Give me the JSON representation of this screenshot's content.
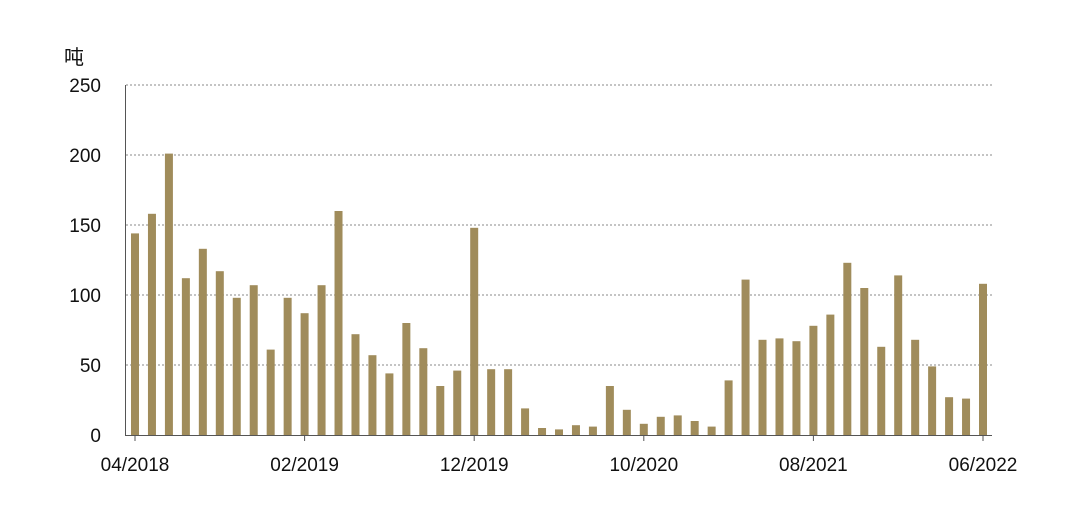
{
  "chart_data": {
    "type": "bar",
    "title": "",
    "xlabel": "",
    "ylabel": "吨",
    "ylim": [
      0,
      250
    ],
    "y_ticks": [
      0,
      50,
      100,
      150,
      200,
      250
    ],
    "x_tick_labels": [
      "04/2018",
      "02/2019",
      "12/2019",
      "10/2020",
      "08/2021",
      "06/2022"
    ],
    "grid": "horizontal-dotted",
    "bar_color": "#A08C5B",
    "categories": [
      "04/2018",
      "05/2018",
      "06/2018",
      "07/2018",
      "08/2018",
      "09/2018",
      "10/2018",
      "11/2018",
      "12/2018",
      "01/2019",
      "02/2019",
      "03/2019",
      "04/2019",
      "05/2019",
      "06/2019",
      "07/2019",
      "08/2019",
      "09/2019",
      "10/2019",
      "11/2019",
      "12/2019",
      "01/2020",
      "02/2020",
      "03/2020",
      "04/2020",
      "05/2020",
      "06/2020",
      "07/2020",
      "08/2020",
      "09/2020",
      "10/2020",
      "11/2020",
      "12/2020",
      "01/2021",
      "02/2021",
      "03/2021",
      "04/2021",
      "05/2021",
      "06/2021",
      "07/2021",
      "08/2021",
      "09/2021",
      "10/2021",
      "11/2021",
      "12/2021",
      "01/2022",
      "02/2022",
      "03/2022",
      "04/2022",
      "05/2022",
      "06/2022"
    ],
    "values": [
      144,
      158,
      201,
      112,
      133,
      117,
      98,
      107,
      61,
      98,
      87,
      107,
      160,
      72,
      57,
      44,
      80,
      62,
      35,
      46,
      148,
      47,
      47,
      19,
      5,
      4,
      7,
      6,
      35,
      18,
      8,
      13,
      14,
      10,
      6,
      39,
      111,
      68,
      69,
      67,
      78,
      86,
      123,
      105,
      63,
      114,
      68,
      49,
      27,
      26,
      108
    ]
  }
}
